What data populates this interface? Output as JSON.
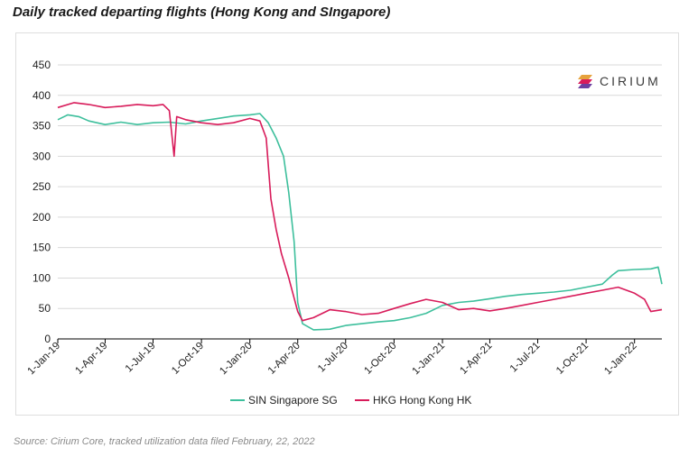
{
  "title": "Daily tracked departing flights (Hong Kong and SIngapore)",
  "source": "Source: Cirium Core, tracked utilization data filed February, 22, 2022",
  "logo": {
    "text": "CIRIUM",
    "icon": "cirium-logo-icon"
  },
  "colors": {
    "sin": "#3dbf9c",
    "hkg": "#d81b5a",
    "grid": "#d9d9d9",
    "axis": "#000000"
  },
  "chart_data": {
    "type": "line",
    "title": "Daily tracked departing flights (Hong Kong and SIngapore)",
    "ylim": [
      0,
      450
    ],
    "y_ticks": [
      0,
      50,
      100,
      150,
      200,
      250,
      300,
      350,
      400,
      450
    ],
    "x_range": [
      "2019-01-01",
      "2022-02-22"
    ],
    "x_ticks": [
      {
        "label": "1-Jan-19",
        "date": "2019-01-01"
      },
      {
        "label": "1-Apr-19",
        "date": "2019-04-01"
      },
      {
        "label": "1-Jul-19",
        "date": "2019-07-01"
      },
      {
        "label": "1-Oct-19",
        "date": "2019-10-01"
      },
      {
        "label": "1-Jan-20",
        "date": "2020-01-01"
      },
      {
        "label": "1-Apr-20",
        "date": "2020-04-01"
      },
      {
        "label": "1-Jul-20",
        "date": "2020-07-01"
      },
      {
        "label": "1-Oct-20",
        "date": "2020-10-01"
      },
      {
        "label": "1-Jan-21",
        "date": "2021-01-01"
      },
      {
        "label": "1-Apr-21",
        "date": "2021-04-01"
      },
      {
        "label": "1-Jul-21",
        "date": "2021-07-01"
      },
      {
        "label": "1-Oct-21",
        "date": "2021-10-01"
      },
      {
        "label": "1-Jan-22",
        "date": "2022-01-01"
      }
    ],
    "grid": true,
    "legend_position": "bottom",
    "series": [
      {
        "name": "SIN Singapore SG",
        "color": "#3dbf9c",
        "points": [
          [
            "2019-01-01",
            360
          ],
          [
            "2019-01-20",
            368
          ],
          [
            "2019-02-10",
            365
          ],
          [
            "2019-03-01",
            358
          ],
          [
            "2019-04-01",
            352
          ],
          [
            "2019-05-01",
            356
          ],
          [
            "2019-06-01",
            352
          ],
          [
            "2019-07-01",
            355
          ],
          [
            "2019-08-01",
            356
          ],
          [
            "2019-09-01",
            353
          ],
          [
            "2019-10-01",
            358
          ],
          [
            "2019-11-01",
            362
          ],
          [
            "2019-12-01",
            366
          ],
          [
            "2020-01-01",
            368
          ],
          [
            "2020-01-20",
            370
          ],
          [
            "2020-02-05",
            355
          ],
          [
            "2020-02-20",
            330
          ],
          [
            "2020-03-05",
            300
          ],
          [
            "2020-03-15",
            240
          ],
          [
            "2020-03-25",
            160
          ],
          [
            "2020-04-01",
            60
          ],
          [
            "2020-04-10",
            25
          ],
          [
            "2020-05-01",
            15
          ],
          [
            "2020-06-01",
            16
          ],
          [
            "2020-07-01",
            22
          ],
          [
            "2020-08-01",
            25
          ],
          [
            "2020-09-01",
            28
          ],
          [
            "2020-10-01",
            30
          ],
          [
            "2020-11-01",
            35
          ],
          [
            "2020-12-01",
            42
          ],
          [
            "2021-01-01",
            55
          ],
          [
            "2021-02-01",
            60
          ],
          [
            "2021-03-01",
            62
          ],
          [
            "2021-04-01",
            66
          ],
          [
            "2021-05-01",
            70
          ],
          [
            "2021-06-01",
            73
          ],
          [
            "2021-07-01",
            75
          ],
          [
            "2021-08-01",
            77
          ],
          [
            "2021-09-01",
            80
          ],
          [
            "2021-10-01",
            85
          ],
          [
            "2021-11-01",
            90
          ],
          [
            "2021-11-20",
            105
          ],
          [
            "2021-12-01",
            112
          ],
          [
            "2022-01-01",
            114
          ],
          [
            "2022-02-01",
            115
          ],
          [
            "2022-02-15",
            118
          ],
          [
            "2022-02-22",
            90
          ]
        ]
      },
      {
        "name": "HKG Hong Kong HK",
        "color": "#d81b5a",
        "points": [
          [
            "2019-01-01",
            380
          ],
          [
            "2019-02-01",
            388
          ],
          [
            "2019-03-01",
            385
          ],
          [
            "2019-04-01",
            380
          ],
          [
            "2019-05-01",
            382
          ],
          [
            "2019-06-01",
            385
          ],
          [
            "2019-07-01",
            383
          ],
          [
            "2019-07-20",
            385
          ],
          [
            "2019-08-01",
            375
          ],
          [
            "2019-08-10",
            300
          ],
          [
            "2019-08-15",
            365
          ],
          [
            "2019-09-01",
            360
          ],
          [
            "2019-10-01",
            355
          ],
          [
            "2019-11-01",
            352
          ],
          [
            "2019-12-01",
            355
          ],
          [
            "2020-01-01",
            362
          ],
          [
            "2020-01-20",
            358
          ],
          [
            "2020-02-01",
            330
          ],
          [
            "2020-02-10",
            230
          ],
          [
            "2020-02-20",
            180
          ],
          [
            "2020-03-01",
            140
          ],
          [
            "2020-03-15",
            100
          ],
          [
            "2020-04-01",
            45
          ],
          [
            "2020-04-10",
            30
          ],
          [
            "2020-05-01",
            35
          ],
          [
            "2020-06-01",
            48
          ],
          [
            "2020-07-01",
            45
          ],
          [
            "2020-08-01",
            40
          ],
          [
            "2020-09-01",
            42
          ],
          [
            "2020-10-01",
            50
          ],
          [
            "2020-11-01",
            58
          ],
          [
            "2020-12-01",
            65
          ],
          [
            "2021-01-01",
            60
          ],
          [
            "2021-02-01",
            48
          ],
          [
            "2021-03-01",
            50
          ],
          [
            "2021-04-01",
            46
          ],
          [
            "2021-05-01",
            50
          ],
          [
            "2021-06-01",
            55
          ],
          [
            "2021-07-01",
            60
          ],
          [
            "2021-08-01",
            65
          ],
          [
            "2021-09-01",
            70
          ],
          [
            "2021-10-01",
            75
          ],
          [
            "2021-11-01",
            80
          ],
          [
            "2021-12-01",
            85
          ],
          [
            "2022-01-01",
            75
          ],
          [
            "2022-01-20",
            65
          ],
          [
            "2022-02-01",
            45
          ],
          [
            "2022-02-22",
            48
          ]
        ]
      }
    ]
  }
}
